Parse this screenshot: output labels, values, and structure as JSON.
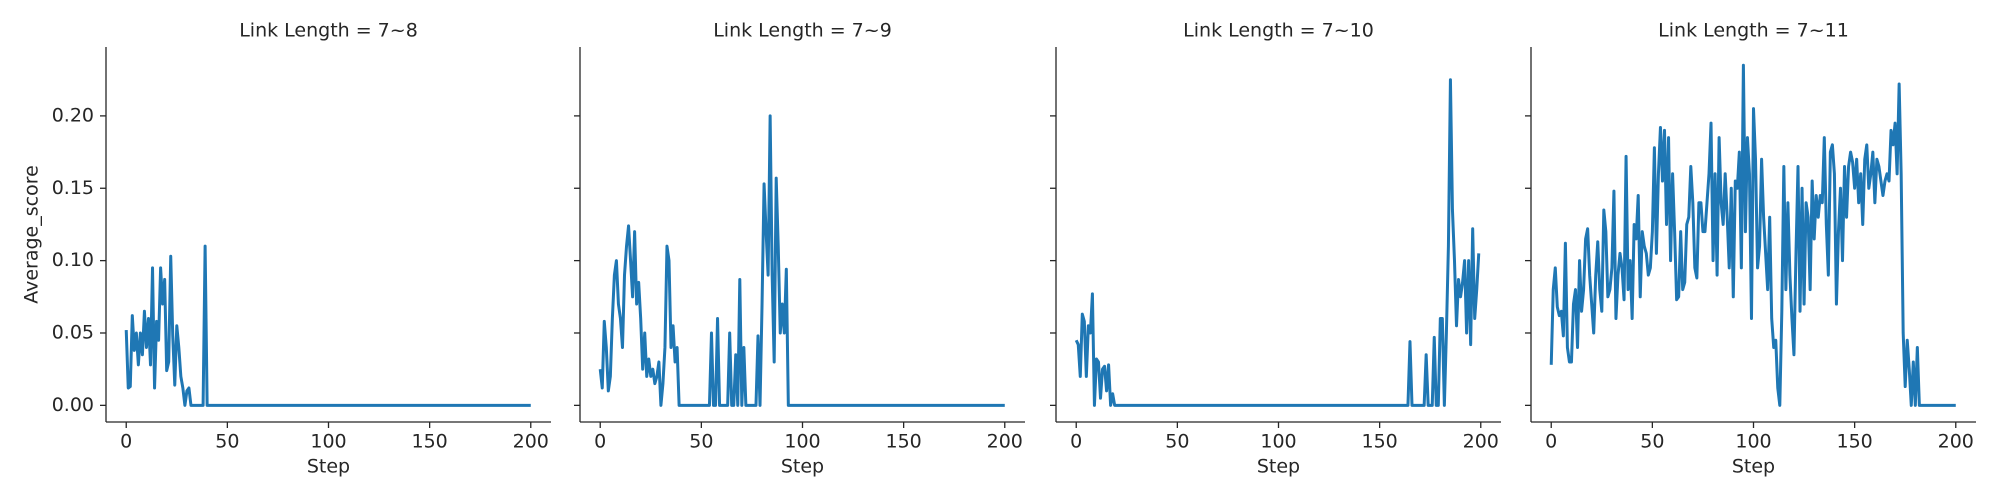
{
  "chart_data": [
    {
      "type": "line",
      "title": "Link Length = 7~8",
      "x_label": "Step",
      "y_label": "Average_score",
      "color": "#1f77b4",
      "xlim": [
        -10,
        210
      ],
      "ylim": [
        -0.0115,
        0.2476
      ],
      "xticks": [
        0,
        50,
        100,
        150,
        200
      ],
      "yticks": [
        {
          "value": 0,
          "label": "0.00"
        },
        {
          "value": 0.05,
          "label": "0.05"
        },
        {
          "value": 0.1,
          "label": "0.10"
        },
        {
          "value": 0.15,
          "label": "0.15"
        },
        {
          "value": 0.2,
          "label": "0.20"
        }
      ],
      "x": [
        0,
        1,
        2,
        3,
        4,
        5,
        6,
        7,
        8,
        9,
        10,
        11,
        12,
        13,
        14,
        15,
        16,
        17,
        18,
        19,
        20,
        21,
        22,
        23,
        24,
        25,
        26,
        27,
        28,
        29,
        30,
        31,
        32,
        33,
        34,
        35,
        36,
        37,
        38,
        39,
        40,
        200
      ],
      "values": [
        0.052,
        0.012,
        0.013,
        0.062,
        0.038,
        0.05,
        0.028,
        0.05,
        0.035,
        0.065,
        0.04,
        0.06,
        0.028,
        0.095,
        0.012,
        0.058,
        0.045,
        0.095,
        0.07,
        0.087,
        0.024,
        0.03,
        0.103,
        0.048,
        0.014,
        0.055,
        0.04,
        0.02,
        0.012,
        0.0,
        0.01,
        0.012,
        0.0,
        0.0,
        0.0,
        0.0,
        0.0,
        0.0,
        0.0,
        0.11,
        0.0,
        0.0
      ]
    },
    {
      "type": "line",
      "title": "Link Length = 7~9",
      "x_label": "Step",
      "color": "#1f77b4",
      "xlim": [
        -10,
        210
      ],
      "ylim": [
        -0.0115,
        0.2476
      ],
      "xticks": [
        0,
        50,
        100,
        150,
        200
      ],
      "yticks": [
        0,
        0.05,
        0.1,
        0.15,
        0.2
      ],
      "x": [
        0,
        1,
        2,
        3,
        4,
        5,
        6,
        7,
        8,
        9,
        10,
        11,
        12,
        13,
        14,
        15,
        16,
        17,
        18,
        19,
        20,
        21,
        22,
        23,
        24,
        25,
        26,
        27,
        28,
        29,
        30,
        31,
        32,
        33,
        34,
        35,
        36,
        37,
        38,
        39,
        40,
        54,
        55,
        56,
        57,
        58,
        59,
        63,
        64,
        65,
        66,
        67,
        68,
        69,
        70,
        71,
        72,
        77,
        78,
        79,
        80,
        81,
        82,
        83,
        84,
        85,
        86,
        87,
        88,
        89,
        90,
        91,
        92,
        93,
        200
      ],
      "values": [
        0.025,
        0.012,
        0.058,
        0.04,
        0.01,
        0.02,
        0.06,
        0.09,
        0.1,
        0.07,
        0.06,
        0.04,
        0.09,
        0.11,
        0.124,
        0.1,
        0.075,
        0.12,
        0.07,
        0.085,
        0.06,
        0.025,
        0.05,
        0.02,
        0.032,
        0.02,
        0.025,
        0.015,
        0.02,
        0.03,
        0.0,
        0.015,
        0.04,
        0.11,
        0.1,
        0.04,
        0.055,
        0.03,
        0.04,
        0.0,
        0.0,
        0.0,
        0.05,
        0.0,
        0.0,
        0.06,
        0.0,
        0.0,
        0.05,
        0.0,
        0.0,
        0.035,
        0.0,
        0.087,
        0.0,
        0.04,
        0.0,
        0.0,
        0.048,
        0.0,
        0.07,
        0.153,
        0.12,
        0.09,
        0.2,
        0.09,
        0.03,
        0.157,
        0.11,
        0.05,
        0.07,
        0.05,
        0.094,
        0.0,
        0.0
      ]
    },
    {
      "type": "line",
      "title": "Link Length = 7~10",
      "x_label": "Step",
      "color": "#1f77b4",
      "xlim": [
        -10,
        210
      ],
      "ylim": [
        -0.0115,
        0.2476
      ],
      "xticks": [
        0,
        50,
        100,
        150,
        200
      ],
      "yticks": [
        0,
        0.05,
        0.1,
        0.15,
        0.2
      ],
      "x": [
        0,
        1,
        2,
        3,
        4,
        5,
        6,
        7,
        8,
        9,
        10,
        11,
        12,
        13,
        14,
        15,
        16,
        17,
        18,
        19,
        164,
        165,
        166,
        172,
        173,
        174,
        175,
        176,
        177,
        178,
        179,
        180,
        181,
        182,
        183,
        184,
        185,
        186,
        187,
        188,
        189,
        190,
        191,
        192,
        193,
        194,
        195,
        196,
        197,
        198,
        199
      ],
      "values": [
        0.045,
        0.042,
        0.02,
        0.063,
        0.058,
        0.02,
        0.055,
        0.05,
        0.077,
        0.0,
        0.032,
        0.03,
        0.005,
        0.025,
        0.027,
        0.01,
        0.028,
        0.0,
        0.008,
        0.0,
        0.0,
        0.044,
        0.0,
        0.0,
        0.035,
        0.0,
        0.0,
        0.0,
        0.047,
        0.0,
        0.0,
        0.06,
        0.06,
        0.0,
        0.05,
        0.11,
        0.225,
        0.135,
        0.1,
        0.055,
        0.087,
        0.075,
        0.085,
        0.1,
        0.05,
        0.1,
        0.042,
        0.122,
        0.06,
        0.08,
        0.105
      ]
    },
    {
      "type": "line",
      "title": "Link Length = 7~11",
      "x_label": "Step",
      "color": "#1f77b4",
      "xlim": [
        -10,
        210
      ],
      "ylim": [
        -0.0115,
        0.2476
      ],
      "xticks": [
        0,
        50,
        100,
        150,
        200
      ],
      "yticks": [
        0,
        0.05,
        0.1,
        0.15,
        0.2
      ],
      "x": [
        0,
        1,
        2,
        3,
        4,
        5,
        6,
        7,
        8,
        9,
        10,
        11,
        12,
        13,
        14,
        15,
        16,
        17,
        18,
        19,
        20,
        21,
        22,
        23,
        24,
        25,
        26,
        27,
        28,
        29,
        30,
        31,
        32,
        33,
        34,
        35,
        36,
        37,
        38,
        39,
        40,
        41,
        42,
        43,
        44,
        45,
        46,
        47,
        48,
        49,
        50,
        51,
        52,
        53,
        54,
        55,
        56,
        57,
        58,
        59,
        60,
        61,
        62,
        63,
        64,
        65,
        66,
        67,
        68,
        69,
        70,
        71,
        72,
        73,
        74,
        75,
        76,
        77,
        78,
        79,
        80,
        81,
        82,
        83,
        84,
        85,
        86,
        87,
        88,
        89,
        90,
        91,
        92,
        93,
        94,
        95,
        96,
        97,
        98,
        99,
        100,
        101,
        102,
        103,
        104,
        105,
        106,
        107,
        108,
        109,
        110,
        111,
        112,
        113,
        114,
        115,
        116,
        117,
        118,
        119,
        120,
        121,
        122,
        123,
        124,
        125,
        126,
        127,
        128,
        129,
        130,
        131,
        132,
        133,
        134,
        135,
        136,
        137,
        138,
        139,
        140,
        141,
        142,
        143,
        144,
        145,
        146,
        147,
        148,
        149,
        150,
        151,
        152,
        153,
        154,
        155,
        156,
        157,
        158,
        159,
        160,
        161,
        162,
        163,
        164,
        165,
        166,
        167,
        168,
        169,
        170,
        171,
        172,
        173,
        174,
        175,
        176,
        177,
        178,
        179,
        180,
        181,
        182,
        183,
        200
      ],
      "values": [
        0.028,
        0.08,
        0.095,
        0.068,
        0.062,
        0.065,
        0.048,
        0.112,
        0.04,
        0.03,
        0.03,
        0.07,
        0.08,
        0.04,
        0.1,
        0.065,
        0.08,
        0.115,
        0.122,
        0.09,
        0.07,
        0.05,
        0.09,
        0.113,
        0.08,
        0.065,
        0.135,
        0.12,
        0.075,
        0.08,
        0.095,
        0.148,
        0.06,
        0.09,
        0.105,
        0.095,
        0.073,
        0.172,
        0.08,
        0.1,
        0.06,
        0.125,
        0.115,
        0.145,
        0.075,
        0.12,
        0.11,
        0.105,
        0.09,
        0.095,
        0.12,
        0.178,
        0.105,
        0.16,
        0.192,
        0.155,
        0.19,
        0.125,
        0.185,
        0.1,
        0.16,
        0.12,
        0.073,
        0.075,
        0.12,
        0.08,
        0.085,
        0.125,
        0.13,
        0.165,
        0.14,
        0.095,
        0.088,
        0.14,
        0.14,
        0.12,
        0.12,
        0.14,
        0.16,
        0.195,
        0.1,
        0.16,
        0.09,
        0.185,
        0.14,
        0.125,
        0.16,
        0.13,
        0.095,
        0.15,
        0.075,
        0.155,
        0.15,
        0.175,
        0.095,
        0.235,
        0.12,
        0.185,
        0.16,
        0.06,
        0.205,
        0.17,
        0.095,
        0.11,
        0.17,
        0.13,
        0.105,
        0.08,
        0.13,
        0.06,
        0.04,
        0.045,
        0.012,
        0.0,
        0.065,
        0.165,
        0.08,
        0.14,
        0.09,
        0.06,
        0.035,
        0.105,
        0.165,
        0.065,
        0.15,
        0.07,
        0.14,
        0.13,
        0.08,
        0.155,
        0.115,
        0.145,
        0.13,
        0.145,
        0.14,
        0.185,
        0.125,
        0.09,
        0.175,
        0.18,
        0.16,
        0.07,
        0.12,
        0.15,
        0.1,
        0.165,
        0.13,
        0.165,
        0.175,
        0.168,
        0.15,
        0.17,
        0.14,
        0.16,
        0.125,
        0.17,
        0.18,
        0.15,
        0.16,
        0.175,
        0.14,
        0.17,
        0.165,
        0.155,
        0.145,
        0.155,
        0.16,
        0.155,
        0.19,
        0.18,
        0.195,
        0.16,
        0.222,
        0.16,
        0.05,
        0.013,
        0.045,
        0.025,
        0.0,
        0.03,
        0.0,
        0.04,
        0.0,
        0.0,
        0.0
      ]
    }
  ]
}
